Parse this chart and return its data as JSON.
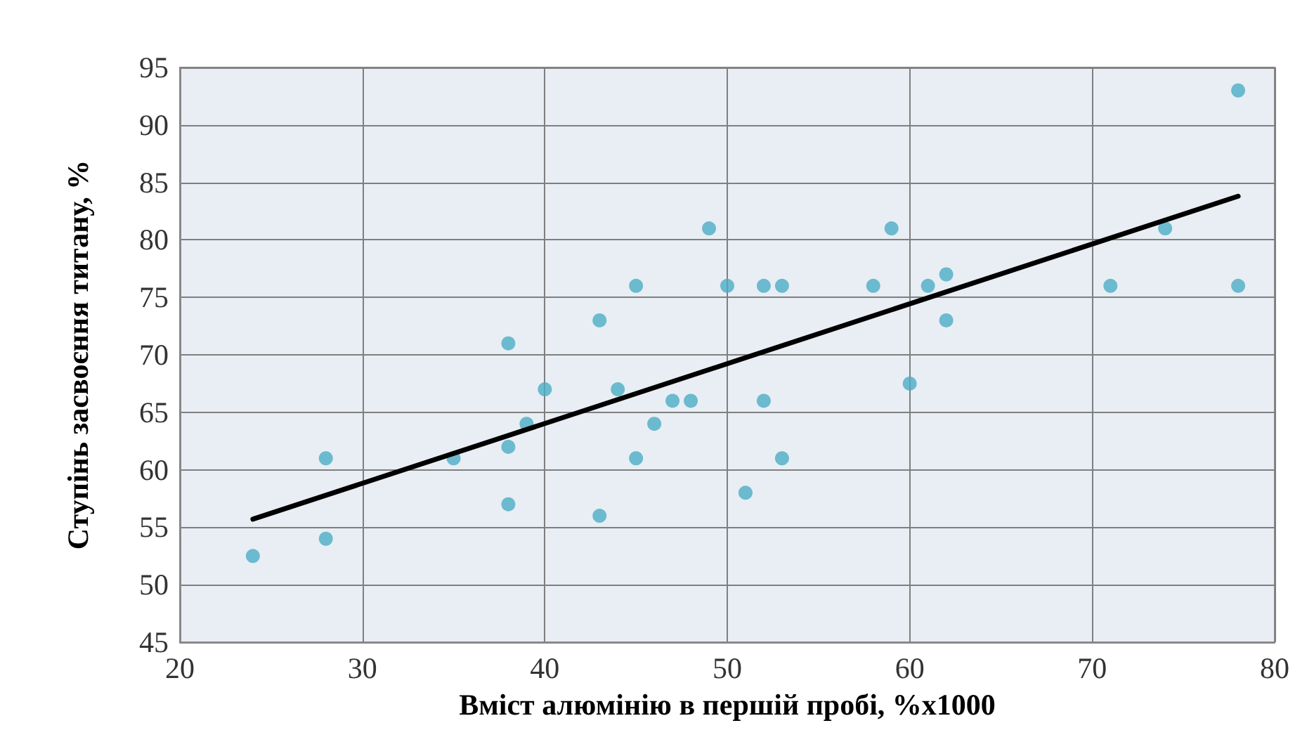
{
  "chart_data": {
    "type": "scatter",
    "xlabel": "Вміст алюмінію в першій пробі, %х1000",
    "ylabel": "Ступінь засвоєння титану, %",
    "xlim": [
      20,
      80
    ],
    "xticks": [
      20,
      30,
      40,
      50,
      60,
      70,
      80
    ],
    "ylim": [
      45,
      95
    ],
    "yticks": [
      45,
      50,
      55,
      60,
      65,
      70,
      75,
      80,
      85,
      90,
      95
    ],
    "grid": true,
    "marker": "circle",
    "series": [
      {
        "color": "#4bacc6",
        "x": [
          24,
          28,
          28,
          35,
          38,
          38,
          38,
          39,
          40,
          43,
          43,
          44,
          45,
          45,
          46,
          47,
          48,
          49,
          50,
          51,
          52,
          52,
          53,
          53,
          58,
          59,
          60,
          61,
          62,
          62,
          71,
          74,
          78,
          78
        ],
        "values": [
          52.5,
          61,
          54,
          61,
          71,
          62,
          57,
          64,
          67,
          73,
          56,
          67,
          76,
          61,
          64,
          66,
          66,
          81,
          76,
          58,
          76,
          66,
          76,
          61,
          76,
          81,
          67.5,
          76,
          77,
          73,
          76,
          81,
          93,
          76
        ]
      },
      {
        "type": "line",
        "color": "#000000",
        "marker": "none",
        "line_style": "solid",
        "x": [
          24,
          78
        ],
        "values": [
          55.7,
          83.8
        ]
      }
    ]
  }
}
